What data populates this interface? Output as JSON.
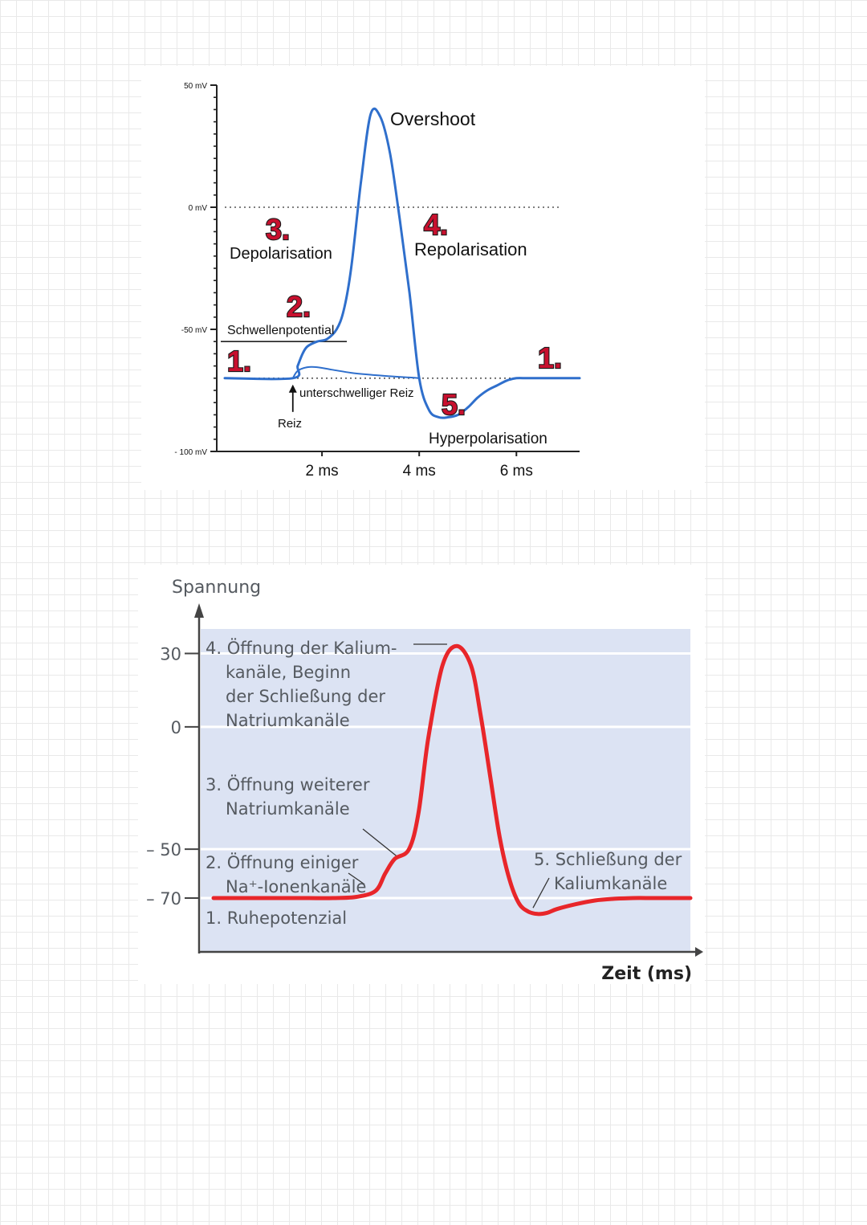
{
  "colors": {
    "top_curve": "#2f6fcc",
    "bottom_curve": "#e8262a",
    "bottom_background": "#dce3f3",
    "badge": "#c8102e"
  },
  "chart_data": [
    {
      "type": "line",
      "title": "",
      "xlabel": "",
      "ylabel": "",
      "x_unit": "ms",
      "y_unit": "mV",
      "x_ticks": [
        "2 ms",
        "4 ms",
        "6 ms"
      ],
      "y_ticks": [
        "50 mV",
        "0 mV",
        "-50 mV",
        "- 100 mV"
      ],
      "xlim": [
        0,
        7.3
      ],
      "ylim": [
        -100,
        50
      ],
      "grid": false,
      "reference_lines": [
        {
          "kind": "dotted",
          "y": 0
        },
        {
          "kind": "solid",
          "y": -55
        },
        {
          "kind": "dotted",
          "y": -70
        }
      ],
      "series": [
        {
          "role": "main",
          "x": [
            0,
            1.4,
            1.5,
            1.6,
            1.7,
            1.9,
            2.1,
            2.3,
            2.45,
            2.6,
            2.8,
            3.0,
            3.2,
            3.4,
            3.6,
            3.8,
            4.0,
            4.2,
            4.4,
            4.6,
            4.8,
            5.0,
            5.2,
            5.4,
            5.6,
            5.8,
            6.0,
            6.2,
            6.4,
            6.6,
            6.8,
            7.0,
            7.3
          ],
          "y": [
            -70,
            -70,
            -65,
            -60,
            -57,
            -55,
            -54,
            -50,
            -42,
            -25,
            10,
            38,
            37,
            22,
            -5,
            -35,
            -70,
            -83,
            -86,
            -86,
            -85,
            -82,
            -78,
            -75,
            -73,
            -71,
            -70,
            -70,
            -70,
            -70,
            -70,
            -70,
            -70
          ]
        },
        {
          "role": "subthreshold",
          "x": [
            1.4,
            1.5,
            1.7,
            1.9,
            2.2,
            2.6,
            3.0,
            3.4,
            3.8,
            4.0
          ],
          "y": [
            -70,
            -67,
            -65.5,
            -65.5,
            -66.5,
            -67.8,
            -68.6,
            -69.2,
            -69.7,
            -70
          ]
        }
      ],
      "annotations": [
        {
          "badge": "1.",
          "text": ""
        },
        {
          "badge": "2.",
          "text": "Schwellenpotential"
        },
        {
          "badge": "3.",
          "text": "Depolarisation"
        },
        {
          "badge": "4.",
          "text": "Repolarisation"
        },
        {
          "badge": "5.",
          "text": "Hyperpolarisation"
        },
        {
          "badge": "1.",
          "text": ""
        },
        {
          "badge": "",
          "text": "Overshoot"
        },
        {
          "badge": "",
          "text": "unterschwelliger Reiz"
        },
        {
          "badge": "",
          "text": "Reiz"
        }
      ]
    },
    {
      "type": "line",
      "title": "",
      "xlabel": "Zeit (ms)",
      "ylabel": "Spannung",
      "y_ticks": [
        "30",
        "0",
        "– 50",
        "– 70"
      ],
      "y_tick_values": [
        30,
        0,
        -50,
        -70
      ],
      "xlim": [
        0,
        10
      ],
      "ylim": [
        -92,
        40
      ],
      "grid_lines_y": [
        30,
        0,
        -50,
        -70
      ],
      "series": [
        {
          "x": [
            0,
            0.5,
            1.0,
            1.5,
            2.0,
            2.5,
            3.0,
            3.4,
            3.6,
            3.8,
            4.1,
            4.3,
            4.5,
            4.8,
            5.1,
            5.4,
            5.6,
            5.8,
            6.0,
            6.2,
            6.4,
            6.6,
            6.8,
            7.0,
            7.2,
            7.6,
            8.0,
            8.4,
            8.8,
            9.2,
            9.6,
            10.0
          ],
          "y": [
            -70,
            -70,
            -70,
            -70,
            -70,
            -70,
            -69.5,
            -67,
            -60,
            -54,
            -50,
            -35,
            -5,
            25,
            33,
            25,
            5,
            -20,
            -45,
            -62,
            -72,
            -75.5,
            -76.5,
            -76,
            -74.5,
            -72.5,
            -71,
            -70.3,
            -70,
            -70,
            -70,
            -70
          ]
        }
      ],
      "annotations": [
        {
          "lines": [
            "4. Öffnung der Kalium-",
            "kanäle, Beginn",
            "der Schließung der",
            "Natriumkanäle"
          ]
        },
        {
          "lines": [
            "3. Öffnung weiterer",
            "Natriumkanäle"
          ]
        },
        {
          "lines": [
            "2. Öffnung einiger",
            "Na⁺-Ionenkanäle"
          ]
        },
        {
          "lines": [
            "1. Ruhepotenzial"
          ]
        },
        {
          "lines": [
            "5. Schließung der",
            "Kaliumkanäle"
          ]
        }
      ]
    }
  ]
}
